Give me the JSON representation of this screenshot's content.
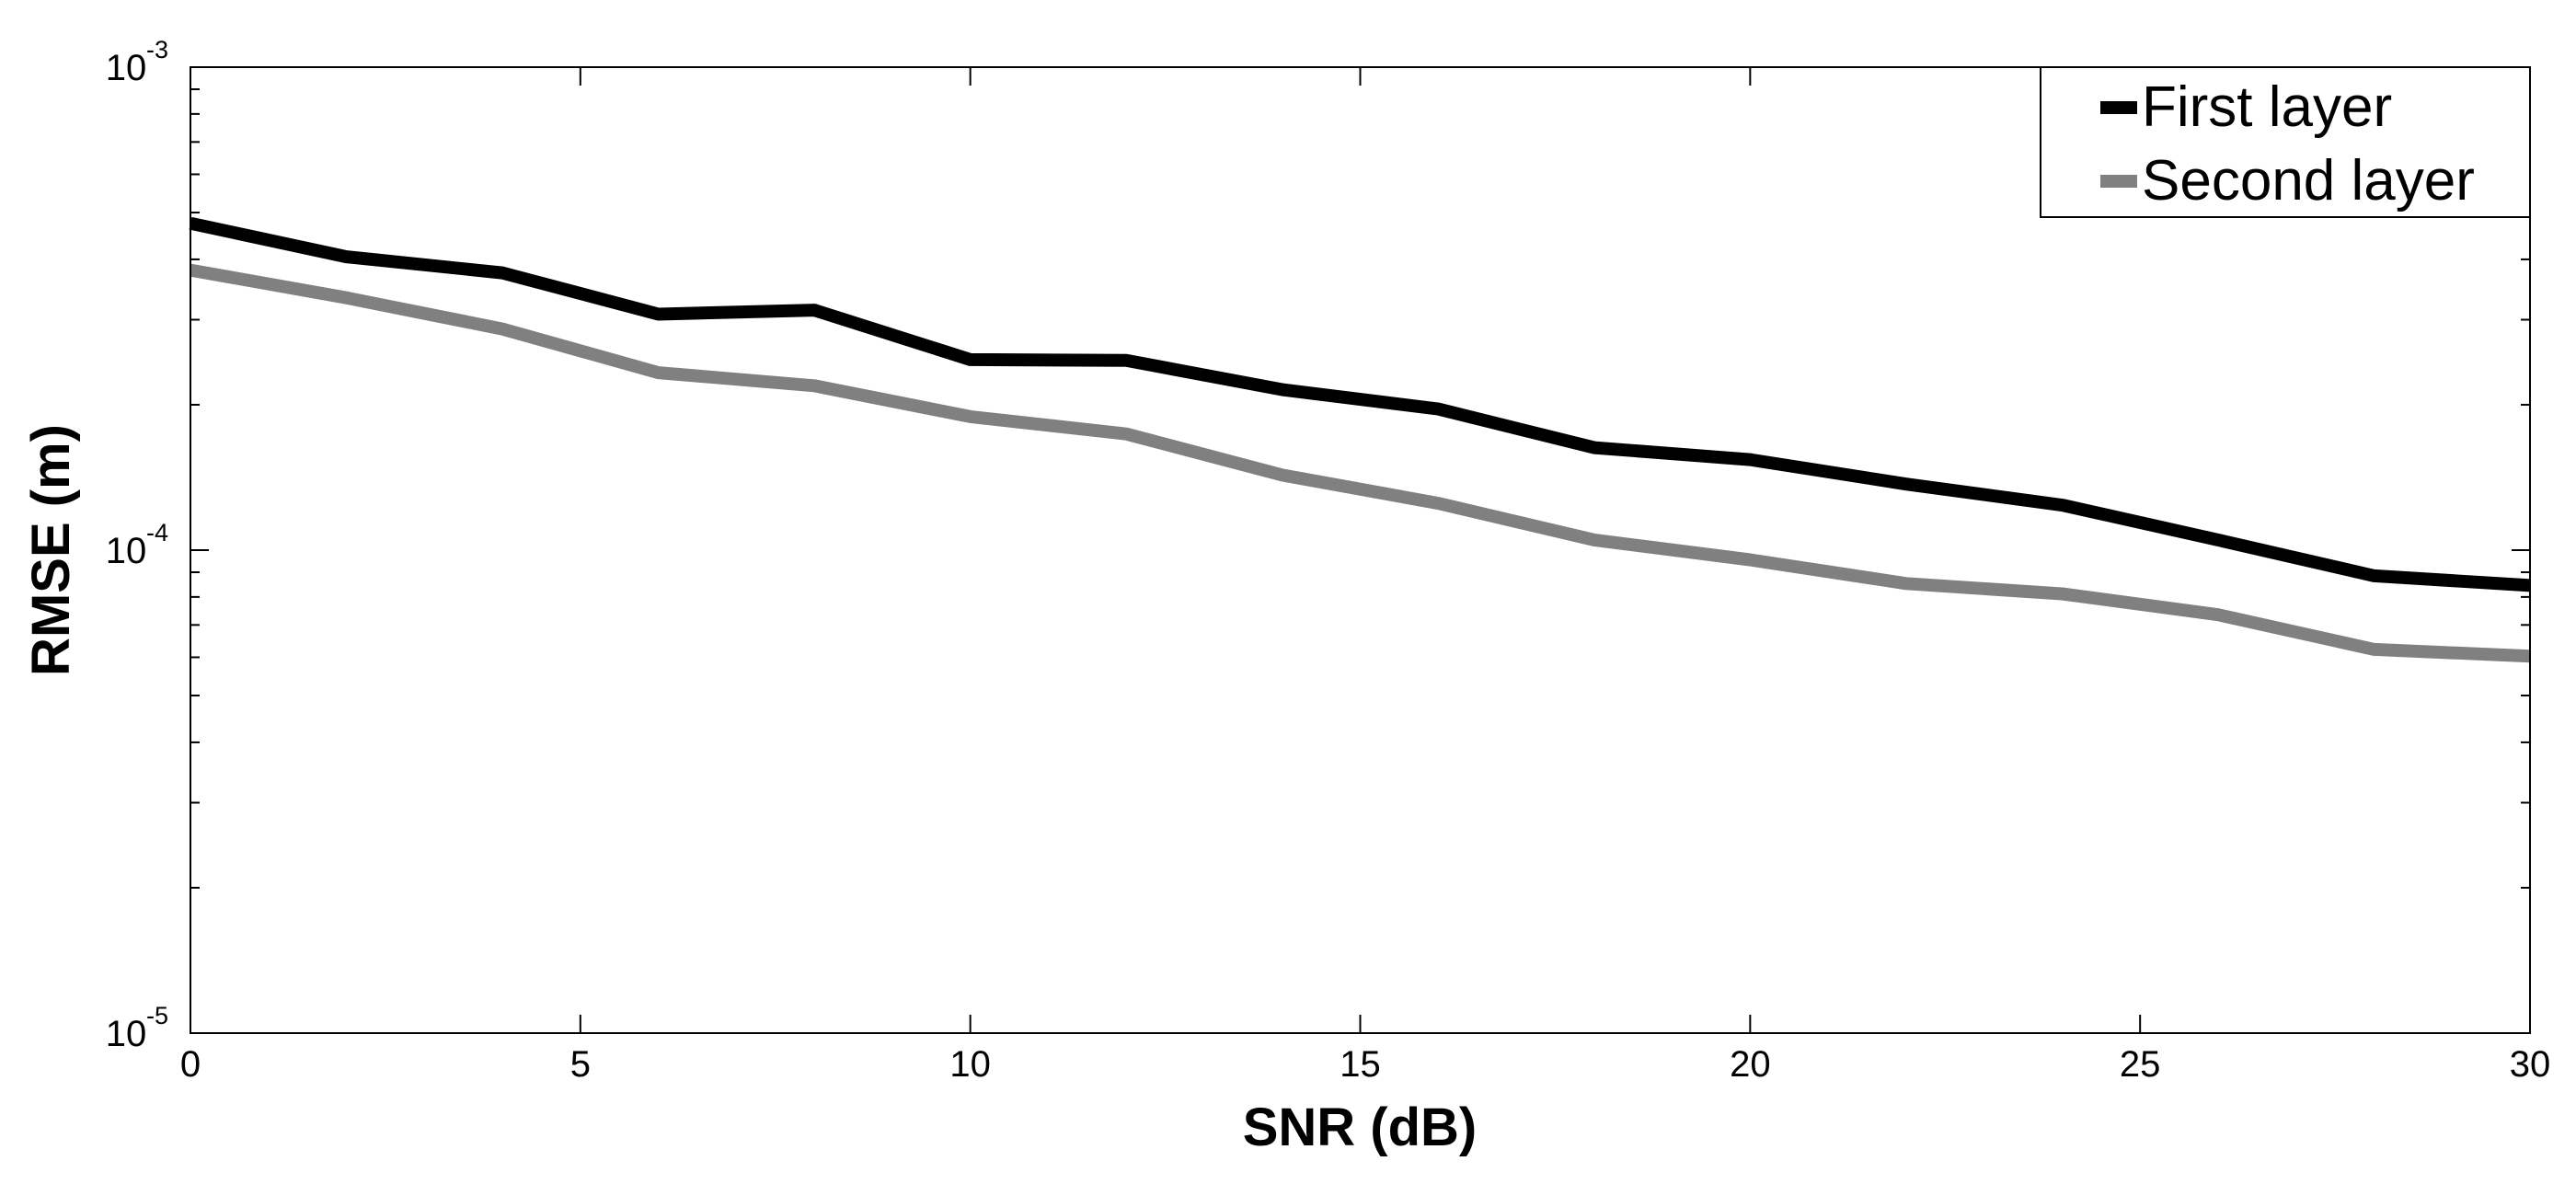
{
  "chart_data": {
    "type": "line",
    "title": "",
    "xlabel": "SNR (dB)",
    "ylabel": "RMSE (m)",
    "xlim": [
      0,
      30
    ],
    "ylim": [
      1e-05,
      0.001
    ],
    "yscale": "log",
    "grid": false,
    "legend_position": "top-right",
    "x_ticks": [
      0,
      5,
      10,
      15,
      20,
      25,
      30
    ],
    "y_ticks": [
      {
        "value": 1e-05,
        "base": "10",
        "exp": "-5"
      },
      {
        "value": 0.0001,
        "base": "10",
        "exp": "-4"
      },
      {
        "value": 0.001,
        "base": "10",
        "exp": "-3"
      }
    ],
    "x": [
      0,
      2,
      4,
      6,
      8,
      10,
      12,
      14,
      16,
      18,
      20,
      22,
      24,
      26,
      28,
      30
    ],
    "series": [
      {
        "name": "First layer",
        "color": "#000000",
        "values": [
          0.000475,
          0.000405,
          0.000375,
          0.000308,
          0.000314,
          0.000248,
          0.000247,
          0.000215,
          0.000196,
          0.000163,
          0.000154,
          0.000137,
          0.000124,
          0.000105,
          8.85e-05,
          8.45e-05
        ]
      },
      {
        "name": "Second layer",
        "color": "#808080",
        "values": [
          0.00038,
          0.000333,
          0.000287,
          0.000233,
          0.000219,
          0.000189,
          0.000174,
          0.000143,
          0.000125,
          0.000105,
          9.55e-05,
          8.53e-05,
          8.12e-05,
          7.35e-05,
          6.23e-05,
          6.03e-05
        ]
      }
    ]
  }
}
